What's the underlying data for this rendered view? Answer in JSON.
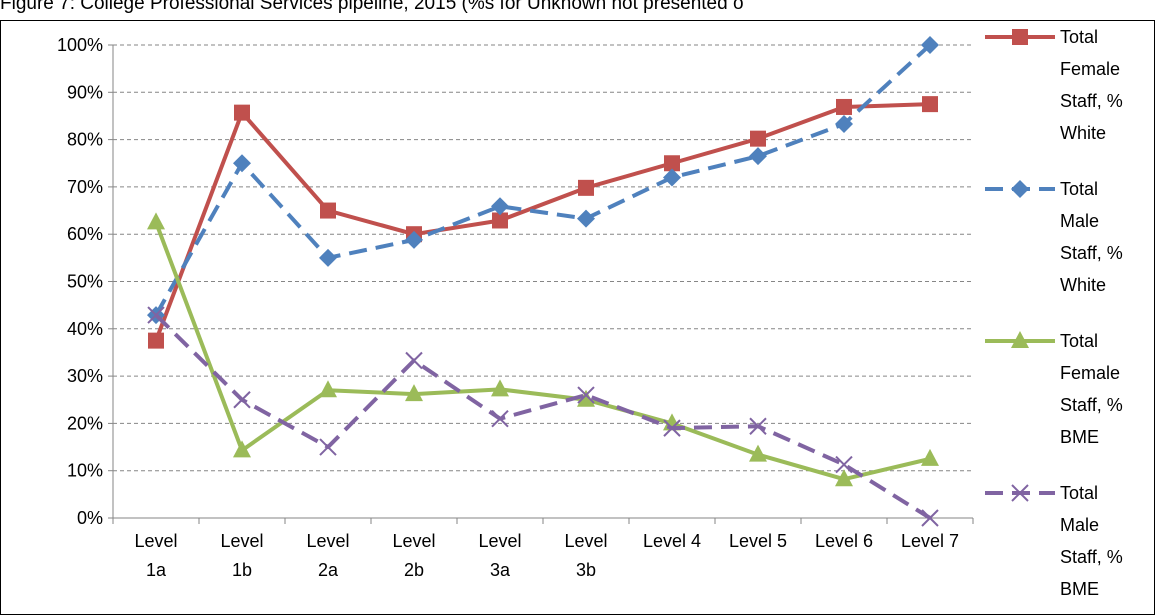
{
  "chart_data": {
    "type": "line",
    "title": "Figure 7: College Professional Services pipeline, 2015 (%s for Unknown not presented o",
    "categories": [
      "Level 1a",
      "Level 1b",
      "Level 2a",
      "Level 2b",
      "Level 3a",
      "Level 3b",
      "Level 4",
      "Level 5",
      "Level 6",
      "Level 7"
    ],
    "series": [
      {
        "name": "Total Female Staff, % White",
        "color": "#c0504d",
        "dashed": false,
        "marker": "square",
        "values": [
          37.5,
          85.7,
          65,
          60,
          62.9,
          69.8,
          75,
          80.2,
          86.9,
          87.5
        ]
      },
      {
        "name": "Total Male Staff, % White",
        "color": "#4f81bd",
        "dashed": true,
        "marker": "diamond",
        "values": [
          42.9,
          75,
          55,
          58.8,
          65.9,
          63.3,
          72,
          76.5,
          83.3,
          100
        ]
      },
      {
        "name": "Total Female Staff, % BME",
        "color": "#9bbb59",
        "dashed": false,
        "marker": "triangle",
        "values": [
          62.5,
          14.3,
          27,
          26.2,
          27.2,
          25,
          20,
          13.4,
          8.2,
          12.5
        ]
      },
      {
        "name": "Total Male Staff, % BME",
        "color": "#8064a2",
        "dashed": true,
        "marker": "x",
        "values": [
          42.9,
          25,
          15,
          33.3,
          21,
          26,
          19,
          19.4,
          11.3,
          0
        ]
      }
    ],
    "ylim": [
      0,
      100
    ],
    "yticks": [
      {
        "value": 0,
        "label": "0%"
      },
      {
        "value": 10,
        "label": "10%"
      },
      {
        "value": 20,
        "label": "20%"
      },
      {
        "value": 30,
        "label": "30%"
      },
      {
        "value": 40,
        "label": "40%"
      },
      {
        "value": 50,
        "label": "50%"
      },
      {
        "value": 60,
        "label": "60%"
      },
      {
        "value": 70,
        "label": "70%"
      },
      {
        "value": 80,
        "label": "80%"
      },
      {
        "value": 90,
        "label": "90%"
      },
      {
        "value": 100,
        "label": "100%"
      }
    ],
    "grid": true,
    "legend": "right"
  }
}
